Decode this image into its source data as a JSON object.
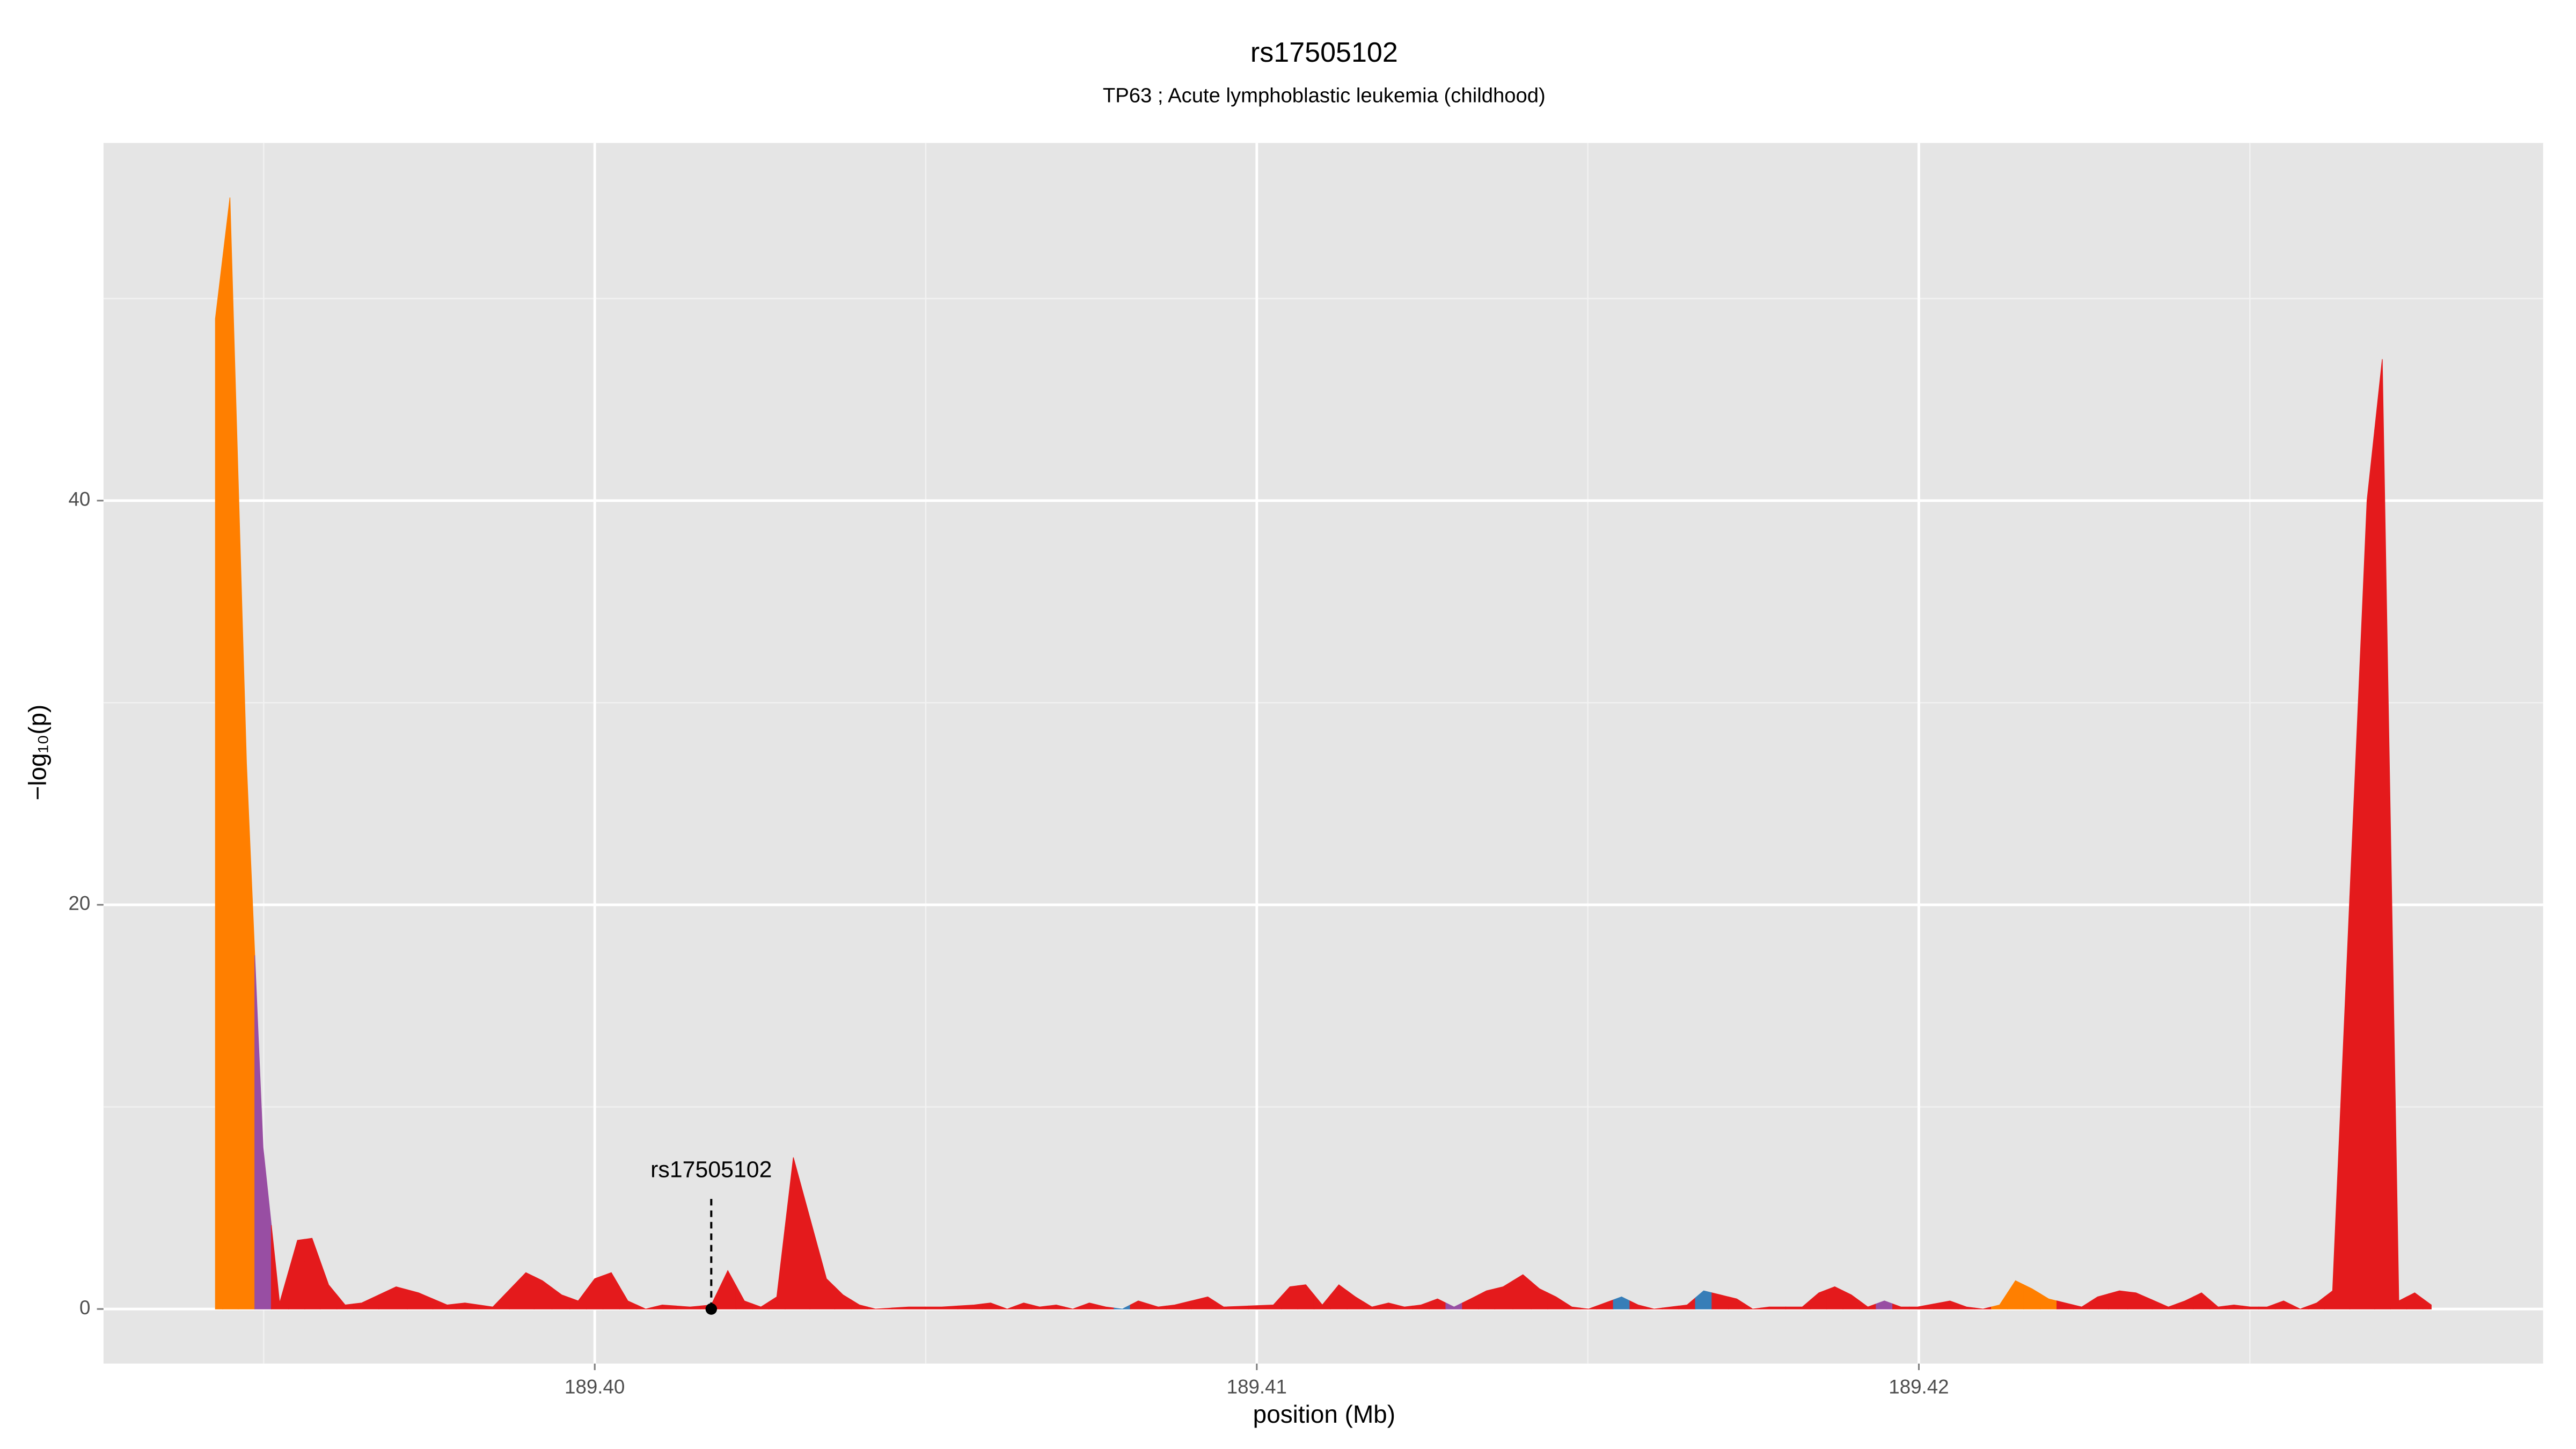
{
  "chart_data": {
    "type": "area",
    "title": "rs17505102",
    "subtitle": "TP63 ; Acute lymphoblastic leukemia (childhood)",
    "x_label": "position (Mb)",
    "y_label": "−log₁₀(p)",
    "xlim": [
      189.39258,
      189.42943
    ],
    "ylim": [
      -2.7,
      57.7
    ],
    "xticks": [
      {
        "value": 189.4,
        "label": "189.40"
      },
      189.41,
      189.42
    ],
    "yticks": [
      0,
      20,
      40
    ],
    "minor_xticks": [
      189.395,
      189.405,
      189.415,
      189.425
    ],
    "minor_yticks": [
      10,
      30,
      50
    ],
    "grid": true,
    "x": [
      189.39427,
      189.39449,
      189.39474,
      189.39499,
      189.39524,
      189.39551,
      189.39573,
      189.39598,
      189.39623,
      189.39648,
      189.397,
      189.39734,
      189.39777,
      189.39804,
      189.39846,
      189.39896,
      189.39921,
      189.3995,
      189.39975,
      189.4,
      189.40025,
      189.4005,
      189.40077,
      189.40102,
      189.40144,
      189.40176,
      189.40201,
      189.40226,
      189.40251,
      189.40275,
      189.403,
      189.4035,
      189.40375,
      189.404,
      189.40424,
      189.40474,
      189.40524,
      189.40573,
      189.40598,
      189.40623,
      189.40648,
      189.40672,
      189.40697,
      189.40722,
      189.40747,
      189.40772,
      189.40797,
      189.40821,
      189.40851,
      189.40876,
      189.40926,
      189.4095,
      189.41025,
      189.4105,
      189.41074,
      189.41099,
      189.41124,
      189.41149,
      189.41174,
      189.41199,
      189.41223,
      189.41248,
      189.41273,
      189.41298,
      189.41323,
      189.41347,
      189.41372,
      189.41402,
      189.41427,
      189.41452,
      189.41476,
      189.41501,
      189.41526,
      189.41551,
      189.41576,
      189.416,
      189.41625,
      189.4165,
      189.41675,
      189.417,
      189.41725,
      189.41749,
      189.41774,
      189.41824,
      189.41849,
      189.41873,
      189.41898,
      189.41923,
      189.41948,
      189.41973,
      189.41998,
      189.42047,
      189.42072,
      189.42097,
      189.42122,
      189.42146,
      189.42171,
      189.42196,
      189.42221,
      189.42246,
      189.4227,
      189.42303,
      189.42328,
      189.42377,
      189.42402,
      189.42427,
      189.42452,
      189.42476,
      189.42501,
      189.42526,
      189.42551,
      189.42576,
      189.42601,
      189.42625,
      189.42677,
      189.427,
      189.42725,
      189.42749,
      189.42774
    ],
    "values": [
      49,
      55,
      27,
      8,
      0.3,
      3.4,
      3.5,
      1.2,
      0.2,
      0.3,
      1.1,
      0.8,
      0.2,
      0.3,
      0.1,
      1.8,
      1.4,
      0.7,
      0.4,
      1.5,
      1.8,
      0.4,
      0,
      0.2,
      0.1,
      0.2,
      1.9,
      0.4,
      0.1,
      0.6,
      7.5,
      1.5,
      0.7,
      0.2,
      0,
      0.1,
      0.1,
      0.2,
      0.3,
      0,
      0.3,
      0.1,
      0.2,
      0,
      0.3,
      0.1,
      0,
      0.4,
      0.1,
      0.2,
      0.6,
      0.1,
      0.2,
      1.1,
      1.2,
      0.2,
      1.2,
      0.6,
      0.1,
      0.3,
      0.1,
      0.2,
      0.5,
      0.1,
      0.5,
      0.9,
      1.1,
      1.7,
      1,
      0.6,
      0.1,
      0,
      0.3,
      0.6,
      0.2,
      0,
      0.1,
      0.2,
      0.9,
      0.7,
      0.5,
      0,
      0.1,
      0.1,
      0.8,
      1.1,
      0.7,
      0.1,
      0.4,
      0.1,
      0.1,
      0.4,
      0.1,
      0,
      0.2,
      1.4,
      1,
      0.5,
      0.3,
      0.1,
      0.6,
      0.9,
      0.8,
      0.1,
      0.4,
      0.8,
      0.1,
      0.2,
      0.1,
      0.1,
      0.4,
      0,
      0.3,
      0.9,
      40,
      47,
      0.4,
      0.8,
      0.2
    ],
    "colors": [
      "#ff7f00",
      "#ff7f00",
      "#ff7f00",
      "#984ea3",
      "#e41a1c",
      "#e41a1c",
      "#e41a1c",
      "#e41a1c",
      "#e41a1c",
      "#e41a1c",
      "#e41a1c",
      "#e41a1c",
      "#e41a1c",
      "#e41a1c",
      "#e41a1c",
      "#e41a1c",
      "#e41a1c",
      "#e41a1c",
      "#e41a1c",
      "#e41a1c",
      "#e41a1c",
      "#e41a1c",
      "#e41a1c",
      "#e41a1c",
      "#e41a1c",
      "#e41a1c",
      "#e41a1c",
      "#e41a1c",
      "#e41a1c",
      "#e41a1c",
      "#e41a1c",
      "#e41a1c",
      "#e41a1c",
      "#e41a1c",
      "#e41a1c",
      "#e41a1c",
      "#e41a1c",
      "#e41a1c",
      "#e41a1c",
      "#e41a1c",
      "#e41a1c",
      "#e41a1c",
      "#e41a1c",
      "#e41a1c",
      "#e41a1c",
      "#e41a1c",
      "#377eb8",
      "#e41a1c",
      "#e41a1c",
      "#e41a1c",
      "#e41a1c",
      "#e41a1c",
      "#e41a1c",
      "#e41a1c",
      "#e41a1c",
      "#e41a1c",
      "#e41a1c",
      "#e41a1c",
      "#e41a1c",
      "#e41a1c",
      "#e41a1c",
      "#e41a1c",
      "#e41a1c",
      "#984ea3",
      "#e41a1c",
      "#e41a1c",
      "#e41a1c",
      "#e41a1c",
      "#e41a1c",
      "#e41a1c",
      "#e41a1c",
      "#e41a1c",
      "#e41a1c",
      "#377eb8",
      "#e41a1c",
      "#e41a1c",
      "#e41a1c",
      "#e41a1c",
      "#377eb8",
      "#e41a1c",
      "#e41a1c",
      "#e41a1c",
      "#e41a1c",
      "#e41a1c",
      "#e41a1c",
      "#e41a1c",
      "#e41a1c",
      "#e41a1c",
      "#984ea3",
      "#e41a1c",
      "#e41a1c",
      "#e41a1c",
      "#e41a1c",
      "#e41a1c",
      "#ff7f00",
      "#ff7f00",
      "#ff7f00",
      "#ff7f00",
      "#e41a1c",
      "#e41a1c",
      "#e41a1c",
      "#e41a1c",
      "#e41a1c",
      "#e41a1c",
      "#e41a1c",
      "#e41a1c",
      "#e41a1c",
      "#e41a1c",
      "#e41a1c",
      "#e41a1c",
      "#e41a1c",
      "#e41a1c",
      "#e41a1c",
      "#e41a1c",
      "#e41a1c",
      "#e41a1c",
      "#e41a1c",
      "#e41a1c",
      "#e41a1c"
    ],
    "highlight": {
      "label": "rs17505102",
      "x": 189.40176,
      "value": 0
    }
  }
}
